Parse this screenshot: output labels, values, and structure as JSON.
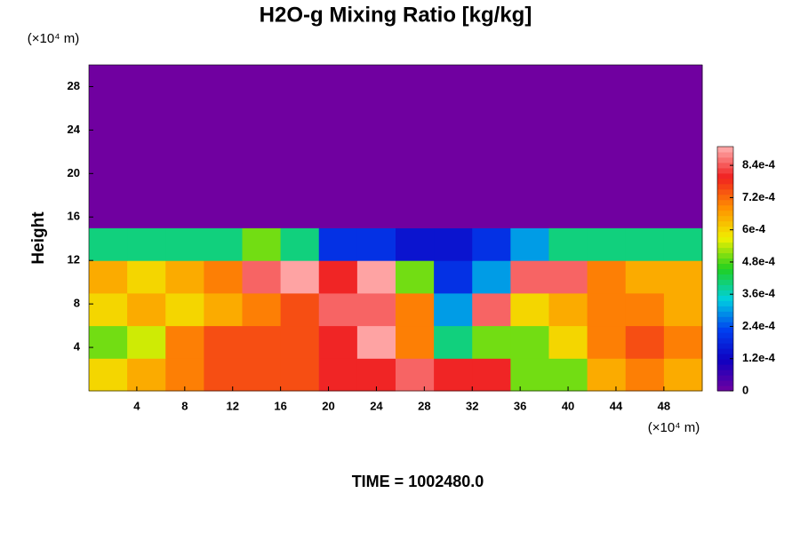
{
  "chart_data": {
    "type": "contour",
    "title": "H2O-g Mixing Ratio [kg/kg]",
    "y_label": "Height",
    "x_unit": "(×10⁴ m)",
    "y_unit": "(×10⁴ m)",
    "footer": "TIME = 1002480.0",
    "xlim": [
      0,
      51.2
    ],
    "ylim": [
      0,
      30
    ],
    "xticks": [
      4,
      8,
      12,
      16,
      20,
      24,
      28,
      32,
      36,
      40,
      44,
      48
    ],
    "yticks": [
      4,
      8,
      12,
      16,
      20,
      24,
      28
    ],
    "zlim": [
      0,
      0.00091
    ],
    "zticks": [
      0,
      {
        "value": 0.00012,
        "label": "1.2e-4"
      },
      {
        "value": 0.00024,
        "label": "2.4e-4"
      },
      {
        "value": 0.00036,
        "label": "3.6e-4"
      },
      {
        "value": 0.00048,
        "label": "4.8e-4"
      },
      {
        "value": 0.0006,
        "label": "6e-4"
      },
      {
        "value": 0.00072,
        "label": "7.2e-4"
      },
      {
        "value": 0.00084,
        "label": "8.4e-4"
      }
    ],
    "colormap": [
      "#7000a0",
      "#1000c0",
      "#0040f0",
      "#00d0e0",
      "#20d020",
      "#f0f000",
      "#ff9000",
      "#f02020",
      "#ffb0b0"
    ],
    "z": [
      [
        0.0006,
        0.00065,
        0.0007,
        0.00075,
        0.00075,
        0.00075,
        0.0008,
        0.0008,
        0.00085,
        0.0008,
        0.0008,
        0.0005,
        0.0005,
        0.00065,
        0.0007,
        0.00065
      ],
      [
        0.0005,
        0.00055,
        0.0007,
        0.00075,
        0.00075,
        0.00075,
        0.0008,
        0.0009,
        0.0007,
        0.0004,
        0.0005,
        0.0005,
        0.0006,
        0.0007,
        0.00075,
        0.0007
      ],
      [
        0.0006,
        0.00065,
        0.0006,
        0.00065,
        0.0007,
        0.00075,
        0.00085,
        0.00085,
        0.0007,
        0.0003,
        0.00085,
        0.0006,
        0.00065,
        0.0007,
        0.0007,
        0.00065
      ],
      [
        0.00065,
        0.0006,
        0.00065,
        0.0007,
        0.00085,
        0.0009,
        0.0008,
        0.0009,
        0.0005,
        0.0002,
        0.0003,
        0.00085,
        0.00085,
        0.0007,
        0.00065,
        0.00065
      ],
      [
        0.0004,
        0.0004,
        0.0004,
        0.0004,
        0.0005,
        0.0004,
        0.0002,
        0.0002,
        0.00015,
        0.00015,
        0.0002,
        0.0003,
        0.0004,
        0.0004,
        0.0004,
        0.0004
      ],
      [
        0,
        0,
        0,
        0,
        0,
        0,
        0,
        0,
        0,
        0,
        0,
        0,
        0,
        0,
        0,
        0
      ],
      [
        0,
        0,
        0,
        0,
        0,
        0,
        0,
        0,
        0,
        0,
        0,
        0,
        0,
        0,
        0,
        0
      ],
      [
        0,
        0,
        0,
        0,
        0,
        0,
        0,
        0,
        0,
        0,
        0,
        0,
        0,
        0,
        0,
        0
      ],
      [
        0,
        0,
        0,
        0,
        0,
        0,
        0,
        0,
        0,
        0,
        0,
        0,
        0,
        0,
        0,
        0
      ],
      [
        0,
        0,
        0,
        0,
        0,
        0,
        0,
        0,
        0,
        0,
        0,
        0,
        0,
        0,
        0,
        0
      ]
    ]
  }
}
